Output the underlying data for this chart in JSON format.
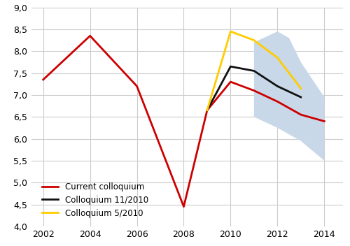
{
  "current_colloquium_x": [
    2002,
    2004,
    2006,
    2008,
    2009,
    2010,
    2011,
    2012,
    2013,
    2014
  ],
  "current_colloquium_y": [
    7.35,
    8.35,
    7.2,
    4.45,
    6.65,
    7.3,
    7.1,
    6.85,
    6.55,
    6.4
  ],
  "colloquium_11_2010_x": [
    2009,
    2010,
    2011,
    2012,
    2013
  ],
  "colloquium_11_2010_y": [
    6.65,
    7.65,
    7.55,
    7.2,
    6.95
  ],
  "colloquium_5_2010_x": [
    2009,
    2010,
    2011,
    2012,
    2013
  ],
  "colloquium_5_2010_y": [
    6.65,
    8.45,
    8.25,
    7.85,
    7.15
  ],
  "band_poly_vertices_x": [
    2011,
    2012,
    2012.5,
    2013,
    2014,
    2014,
    2013,
    2012,
    2011
  ],
  "band_poly_vertices_y": [
    8.2,
    8.45,
    8.3,
    7.75,
    6.95,
    5.5,
    5.95,
    6.25,
    6.5
  ],
  "xlim": [
    2001.5,
    2014.8
  ],
  "ylim": [
    4.0,
    9.0
  ],
  "xticks": [
    2002,
    2004,
    2006,
    2008,
    2010,
    2012,
    2014
  ],
  "yticks": [
    4.0,
    4.5,
    5.0,
    5.5,
    6.0,
    6.5,
    7.0,
    7.5,
    8.0,
    8.5,
    9.0
  ],
  "current_color": "#cc0000",
  "coll11_color": "#111111",
  "coll5_color": "#ffcc00",
  "shade_color": "#c8d8e8",
  "legend_labels": [
    "Current colloquium",
    "Colloquium 11/2010",
    "Colloquium 5/2010"
  ],
  "background_color": "#ffffff",
  "grid_color": "#cccccc"
}
